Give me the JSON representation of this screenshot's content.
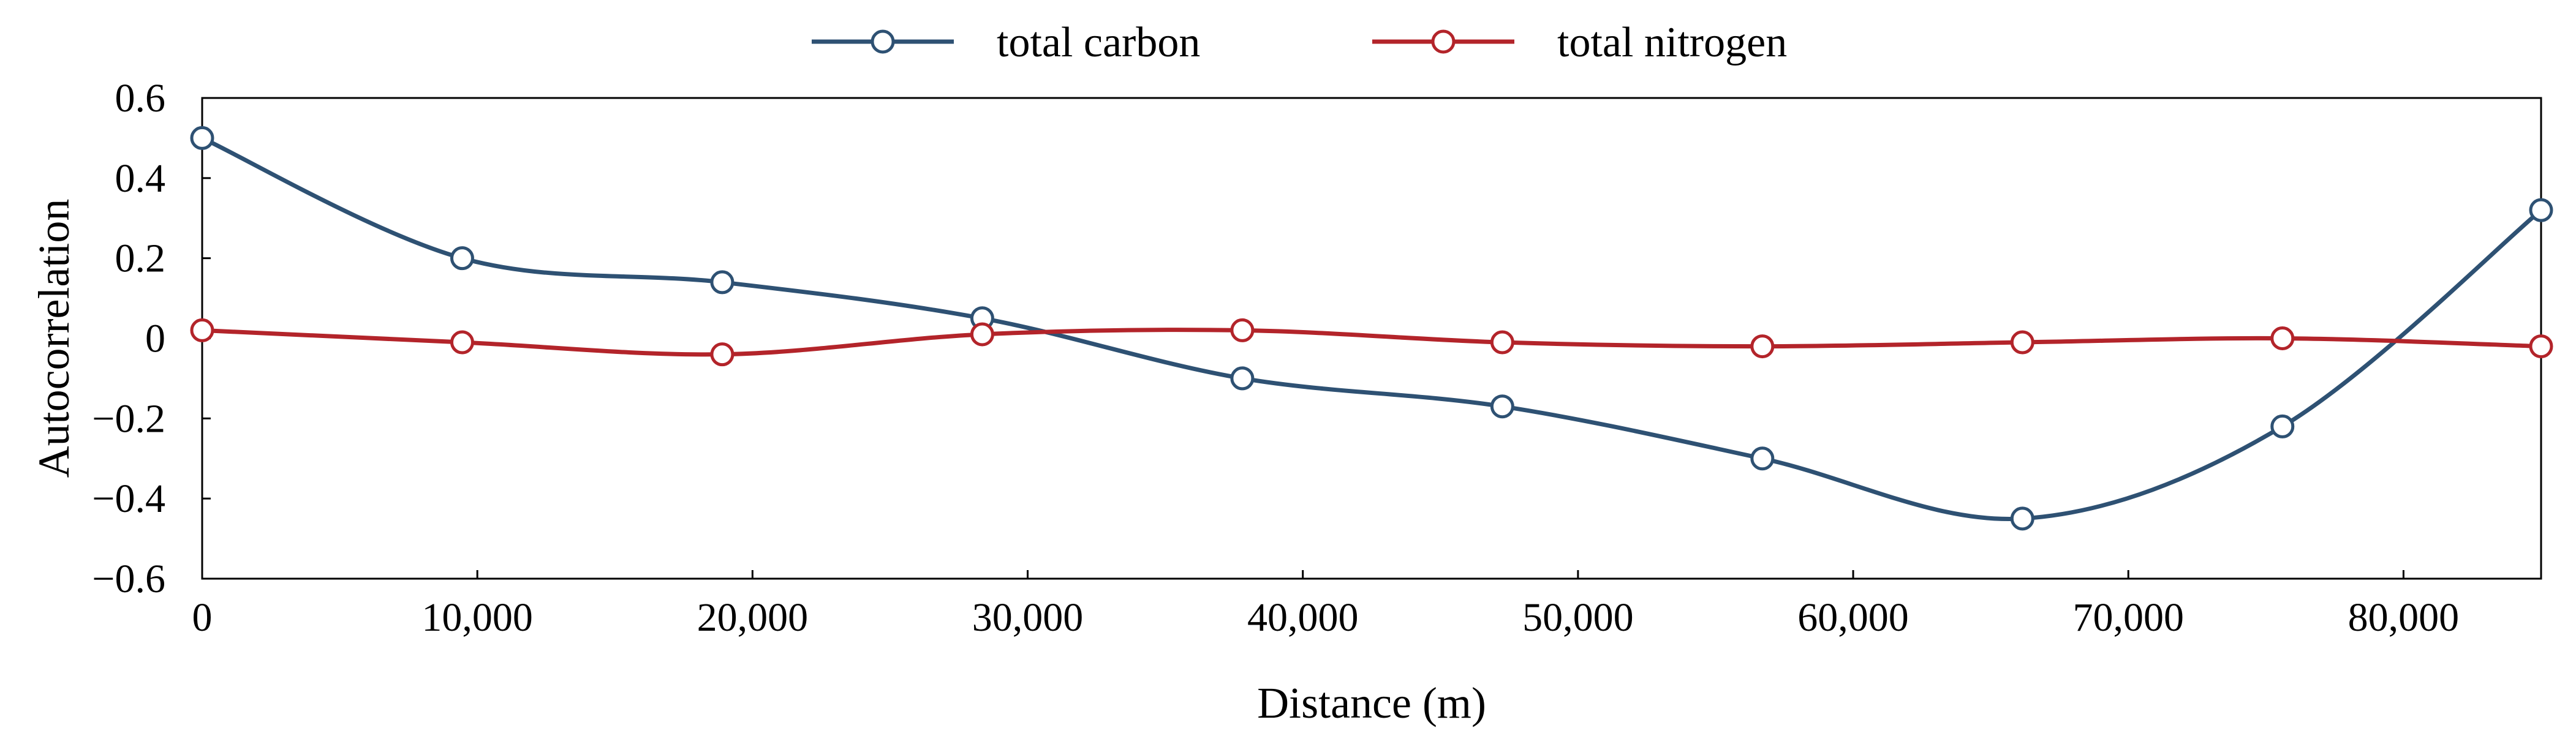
{
  "chart_data": {
    "type": "line",
    "title": "",
    "xlabel": "Distance (m)",
    "ylabel": "Autocorrelation",
    "xlim": [
      0,
      85000
    ],
    "ylim": [
      -0.6,
      0.6
    ],
    "x_ticks": [
      0,
      10000,
      20000,
      30000,
      40000,
      50000,
      60000,
      70000,
      80000
    ],
    "x_tick_labels": [
      "0",
      "10,000",
      "20,000",
      "30,000",
      "40,000",
      "50,000",
      "60,000",
      "70,000",
      "80,000"
    ],
    "y_ticks": [
      0.6,
      0.4,
      0.2,
      0,
      -0.2,
      -0.4,
      -0.6
    ],
    "y_tick_labels": [
      "0.6",
      "0.4",
      "0.2",
      "0",
      "−0.2",
      "−0.4",
      "−0.6"
    ],
    "grid": false,
    "legend_position": "top-center",
    "x": [
      0,
      9450,
      18900,
      28350,
      37800,
      47250,
      56700,
      66150,
      75600,
      85000
    ],
    "series": [
      {
        "name": "total carbon",
        "color": "#2e5173",
        "marker": "circle",
        "smooth": true,
        "values": [
          0.5,
          0.2,
          0.14,
          0.05,
          -0.1,
          -0.17,
          -0.3,
          -0.45,
          -0.22,
          0.32
        ]
      },
      {
        "name": "total nitrogen",
        "color": "#b3242a",
        "marker": "circle",
        "smooth": true,
        "values": [
          0.02,
          -0.01,
          -0.04,
          0.01,
          0.02,
          -0.01,
          -0.02,
          -0.01,
          0.0,
          -0.02
        ]
      }
    ]
  }
}
